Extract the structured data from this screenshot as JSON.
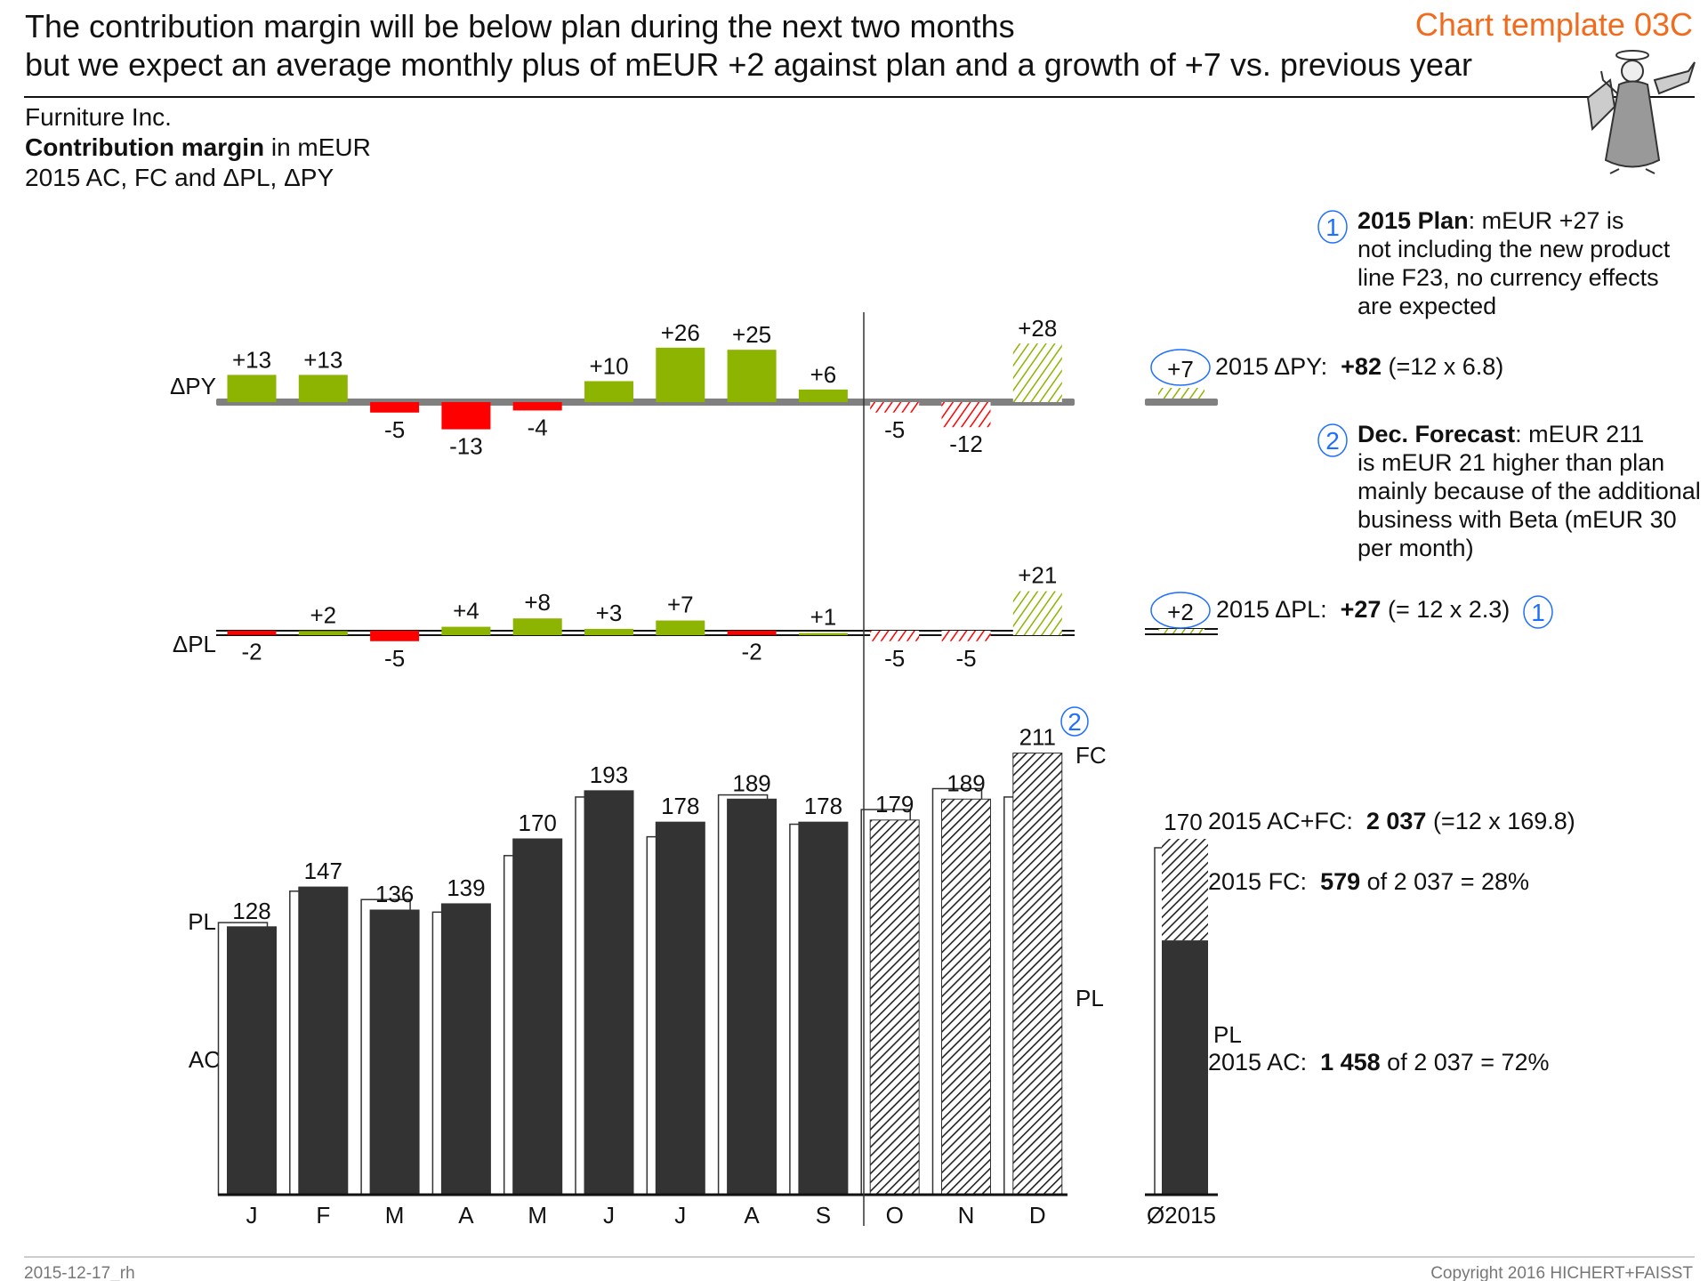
{
  "header": {
    "title_line1": "The contribution margin will be below plan during the next two months",
    "title_line2": "but we expect an average monthly plus of mEUR +2 against plan and a growth of +7 vs. previous year",
    "template_label": "Chart template 03C"
  },
  "subtitle": {
    "company": "Furniture Inc.",
    "measure_bold": "Contribution margin",
    "measure_unit": " in mEUR",
    "scenarios": "2015 AC, FC and ΔPL, ΔPY"
  },
  "colors": {
    "positive": "#8cb400",
    "negative": "#ff0000",
    "actual": "#333333",
    "axis_py": "#808080",
    "accent": "#f26b1d",
    "marker": "#1f6fff"
  },
  "chart_data": {
    "type": "bar",
    "categories": [
      "J",
      "F",
      "M",
      "A",
      "M",
      "J",
      "J",
      "A",
      "S",
      "O",
      "N",
      "D"
    ],
    "forecast_from_index": 9,
    "row_labels": {
      "delta_py": "ΔPY",
      "delta_pl": "ΔPL",
      "pl": "PL",
      "ac": "AC",
      "fc": "FC",
      "pl_right": "PL"
    },
    "series": [
      {
        "name": "AC",
        "values": [
          128,
          147,
          136,
          139,
          170,
          193,
          178,
          189,
          178,
          null,
          null,
          null
        ]
      },
      {
        "name": "FC",
        "values": [
          null,
          null,
          null,
          null,
          null,
          null,
          null,
          null,
          null,
          179,
          189,
          211
        ]
      },
      {
        "name": "PL",
        "values": [
          130,
          145,
          141,
          135,
          162,
          190,
          171,
          191,
          177,
          184,
          194,
          190
        ]
      },
      {
        "name": "ΔPY",
        "values": [
          13,
          13,
          -5,
          -13,
          -4,
          10,
          26,
          25,
          6,
          -5,
          -12,
          28
        ]
      },
      {
        "name": "ΔPL",
        "values": [
          -2,
          2,
          -5,
          4,
          8,
          3,
          7,
          -2,
          1,
          -5,
          -5,
          21
        ]
      }
    ],
    "value_labels": [
      "128",
      "147",
      "136",
      "139",
      "170",
      "193",
      "178",
      "189",
      "178",
      "179",
      "189",
      "211"
    ],
    "delta_py_labels": [
      "+13",
      "+13",
      "-5",
      "-13",
      "-4",
      "+10",
      "+26",
      "+25",
      "+6",
      "-5",
      "-12",
      "+28"
    ],
    "delta_pl_labels": [
      "-2",
      "+2",
      "-5",
      "+4",
      "+8",
      "+3",
      "+7",
      "-2",
      "+1",
      "-5",
      "-5",
      "+21"
    ],
    "average": {
      "category": "Ø2015",
      "value": 170,
      "value_label": "170",
      "ac_part": 121.5,
      "pl_label": "PL",
      "delta_py": 7,
      "delta_py_label": "+7",
      "delta_pl": 2,
      "delta_pl_label": "+2"
    }
  },
  "annotations": {
    "plan": {
      "marker": "1",
      "bold": "2015 Plan",
      "first": ": mEUR +27 is",
      "lines": [
        "not including the new product",
        "line F23, no currency effects",
        "are expected"
      ]
    },
    "forecast": {
      "marker": "2",
      "bold": "Dec. Forecast",
      "first": ": mEUR 211",
      "lines": [
        "is mEUR 21 higher than plan",
        "mainly because of the additional",
        "business with Beta (mEUR 30",
        "per month)"
      ]
    },
    "py_total": {
      "label": "2015 ΔPY:  ",
      "bold": "+82",
      "rest": " (=12 x 6.8)"
    },
    "pl_total": {
      "label": "2015 ΔPL:  ",
      "bold": "+27",
      "rest": " (= 12 x 2.3)",
      "marker": "1"
    },
    "acfc_total": {
      "label": "2015 AC+FC:  ",
      "bold": "2 037",
      "rest": " (=12 x 169.8)"
    },
    "fc_total": {
      "label": "2015 FC:  ",
      "bold": "579",
      "rest": " of 2 037 = 28%"
    },
    "ac_total": {
      "label": "2015 AC:  ",
      "bold": "1 458",
      "rest": " of 2 037 = 72%"
    },
    "dec_marker": "2"
  },
  "footer": {
    "date": "2015-12-17_rh",
    "copyright": "Copyright 2016 HICHERT+FAISST"
  }
}
